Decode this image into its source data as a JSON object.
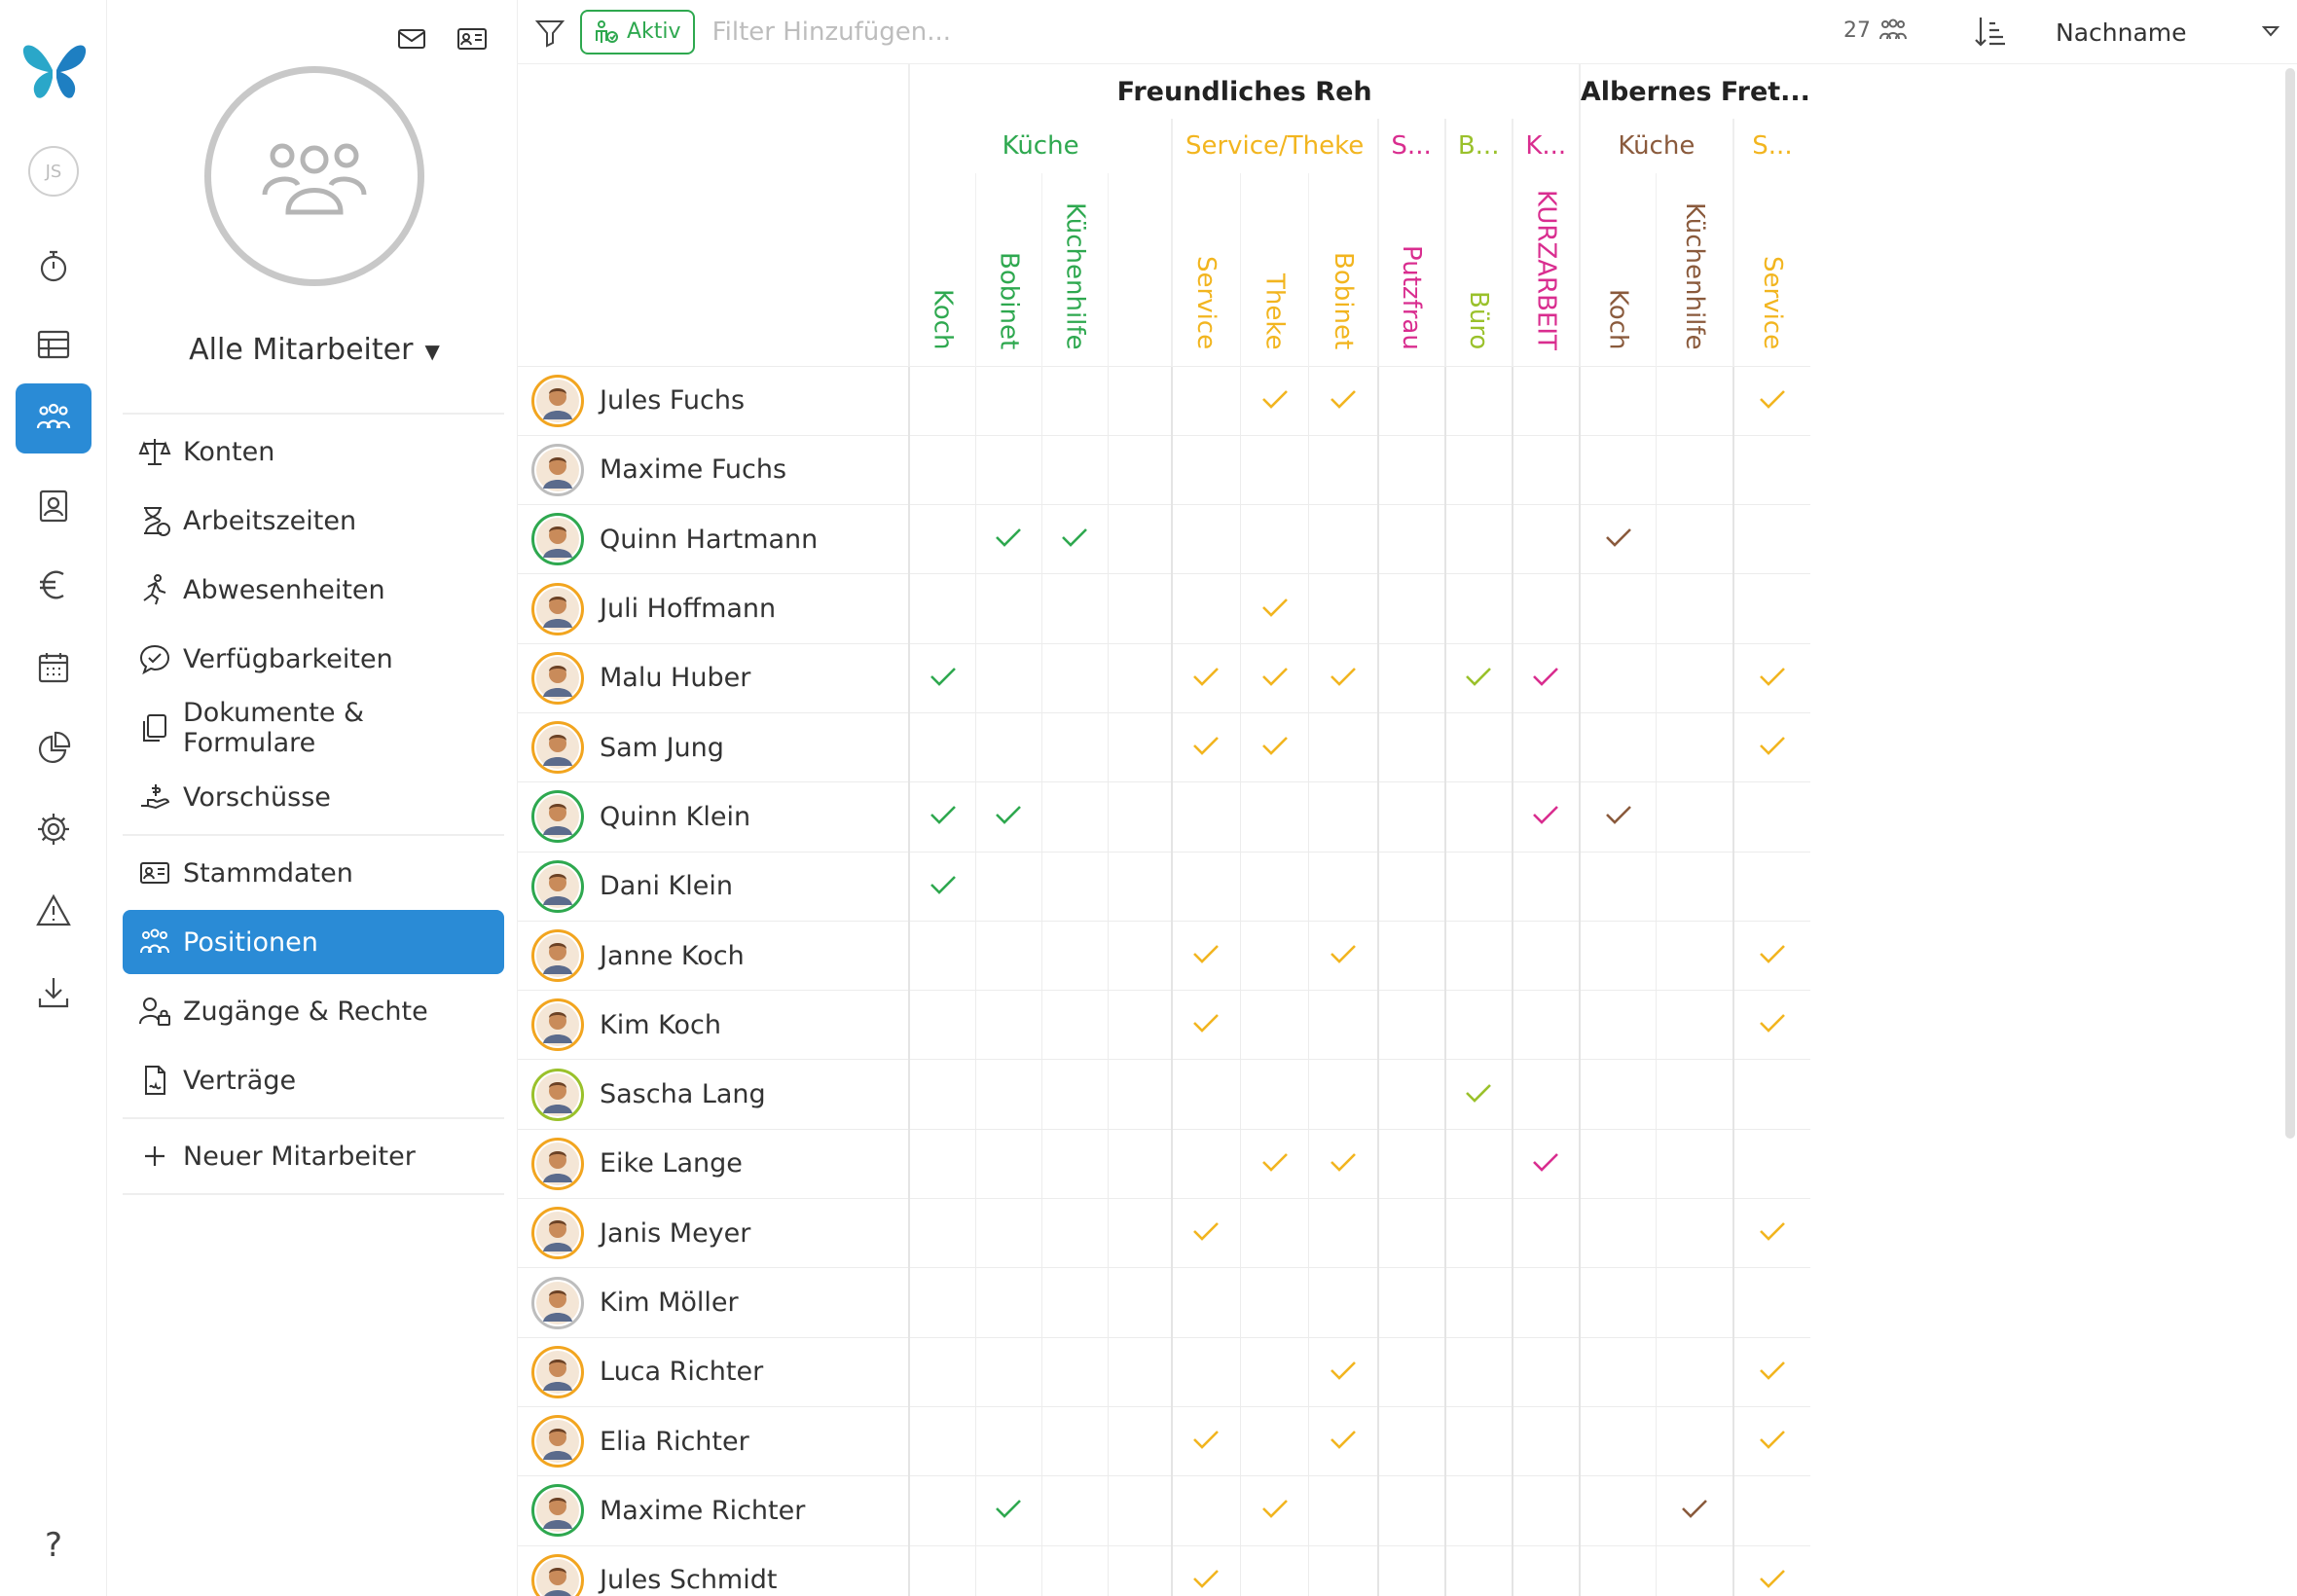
{
  "rail": {
    "user_initials": "JS",
    "items": [
      "stopwatch-icon",
      "table-icon",
      "team-icon",
      "contact-card-icon",
      "euro-icon",
      "calendar-icon",
      "pie-chart-icon",
      "gear-icon",
      "warning-icon",
      "download-icon"
    ],
    "help_label": "?"
  },
  "panel": {
    "group_label": "Alle Mitarbeiter",
    "menu_group1": [
      "Konten",
      "Arbeitszeiten",
      "Abwesenheiten",
      "Verfügbarkeiten",
      "Dokumente & Formulare",
      "Vorschüsse"
    ],
    "menu_group2": [
      "Stammdaten",
      "Positionen",
      "Zugänge & Rechte",
      "Verträge"
    ],
    "active_item": "Positionen",
    "new_employee_label": "Neuer Mitarbeiter"
  },
  "toolbar": {
    "aktiv_label": "Aktiv",
    "filter_placeholder": "Filter Hinzufügen...",
    "count": "27",
    "sort_label": "Nachname"
  },
  "colors": {
    "accent": "#2a8bd6",
    "kueche_green": "#2ea84f",
    "service_yellow": "#f2b51f",
    "putz_pink": "#d92d8f",
    "buero_lime": "#9ac12b",
    "albernes_kueche": "#8a5a3c"
  },
  "locations": [
    {
      "name": "Freundliches Reh",
      "span": 10
    },
    {
      "name": "Albernes Fret...",
      "span": 3
    }
  ],
  "groups": [
    {
      "name": "Küche",
      "span": 4,
      "color": "#2ea84f"
    },
    {
      "name": "Service/Theke",
      "span": 3,
      "color": "#f2b51f"
    },
    {
      "name": "S...",
      "span": 1,
      "color": "#d92d8f"
    },
    {
      "name": "B...",
      "span": 1,
      "color": "#9ac12b"
    },
    {
      "name": "K...",
      "span": 1,
      "color": "#d92d8f"
    },
    {
      "name": "Küche",
      "span": 2,
      "color": "#8a5a3c"
    },
    {
      "name": "S...",
      "span": 1,
      "color": "#f2b51f"
    }
  ],
  "roles": [
    {
      "name": "Koch",
      "color": "#2ea84f",
      "gstart": true
    },
    {
      "name": "Bobinet",
      "color": "#2ea84f"
    },
    {
      "name": "Küchenhilfe",
      "color": "#2ea84f"
    },
    {
      "name": "",
      "color": "#2ea84f"
    },
    {
      "name": "Service",
      "color": "#f2b51f",
      "gstart": true
    },
    {
      "name": "Theke",
      "color": "#f2b51f"
    },
    {
      "name": "Bobinet",
      "color": "#f2b51f"
    },
    {
      "name": "Putzfrau",
      "color": "#d92d8f",
      "gstart": true
    },
    {
      "name": "Büro",
      "color": "#9ac12b",
      "gstart": true
    },
    {
      "name": "KURZARBEIT",
      "color": "#d92d8f",
      "gstart": true
    },
    {
      "name": "Koch",
      "color": "#8a5a3c",
      "gstart": true
    },
    {
      "name": "Küchenhilfe",
      "color": "#8a5a3c"
    },
    {
      "name": "Service",
      "color": "#f2b51f",
      "gstart": true
    }
  ],
  "employees": [
    {
      "name": "Jules Fuchs",
      "ring": "#f2a51f",
      "checks": [
        5,
        6,
        12
      ]
    },
    {
      "name": "Maxime Fuchs",
      "ring": "#bdbdbd",
      "checks": []
    },
    {
      "name": "Quinn Hartmann",
      "ring": "#2ea84f",
      "checks": [
        1,
        2,
        10
      ]
    },
    {
      "name": "Juli Hoffmann",
      "ring": "#f2a51f",
      "checks": [
        5
      ]
    },
    {
      "name": "Malu Huber",
      "ring": "#f2a51f",
      "checks": [
        0,
        4,
        5,
        6,
        8,
        9,
        12
      ]
    },
    {
      "name": "Sam Jung",
      "ring": "#f2a51f",
      "checks": [
        4,
        5,
        12
      ]
    },
    {
      "name": "Quinn Klein",
      "ring": "#2ea84f",
      "checks": [
        0,
        1,
        9,
        10
      ]
    },
    {
      "name": "Dani Klein",
      "ring": "#2ea84f",
      "checks": [
        0
      ]
    },
    {
      "name": "Janne Koch",
      "ring": "#f2a51f",
      "checks": [
        4,
        6,
        12
      ]
    },
    {
      "name": "Kim Koch",
      "ring": "#f2a51f",
      "checks": [
        4,
        12
      ]
    },
    {
      "name": "Sascha Lang",
      "ring": "#9ac12b",
      "checks": [
        8
      ]
    },
    {
      "name": "Eike Lange",
      "ring": "#f2a51f",
      "checks": [
        5,
        6,
        9
      ]
    },
    {
      "name": "Janis Meyer",
      "ring": "#f2a51f",
      "checks": [
        4,
        12
      ]
    },
    {
      "name": "Kim Möller",
      "ring": "#bdbdbd",
      "checks": []
    },
    {
      "name": "Luca Richter",
      "ring": "#f2a51f",
      "checks": [
        6,
        12
      ]
    },
    {
      "name": "Elia Richter",
      "ring": "#f2a51f",
      "checks": [
        4,
        6,
        12
      ]
    },
    {
      "name": "Maxime Richter",
      "ring": "#2ea84f",
      "checks": [
        1,
        5,
        11
      ]
    },
    {
      "name": "Jules Schmidt",
      "ring": "#f2a51f",
      "checks": [
        4,
        12
      ]
    }
  ]
}
